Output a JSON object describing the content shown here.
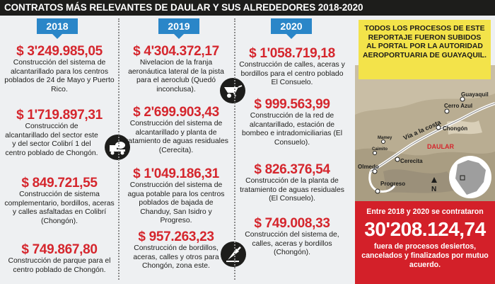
{
  "title": "CONTRATOS MÁS RELEVANTES DE DAULAR Y SUS ALREDEDORES 2018-2020",
  "columns": [
    {
      "year": "2018",
      "items": [
        {
          "amount": "$ 3'249.985,05",
          "desc": "Construcción del sistema de alcantarillado para los centros poblados de 24 de Mayo y Puerto Rico."
        },
        {
          "amount": "$ 1'719.897,31",
          "desc": "Construcción de alcantarillado del sector este y del sector Colibrí 1 del centro poblado de Chongón."
        },
        {
          "amount": "$ 849.721,55",
          "desc": "Construcción de sistema complementario, bordillos, aceras y calles asfaltadas en Colibrí (Chongón)."
        },
        {
          "amount": "$ 749.867,80",
          "desc": "Construcción de parque para el centro poblado de Chongón."
        }
      ]
    },
    {
      "year": "2019",
      "items": [
        {
          "amount": "$ 4'304.372,17",
          "desc": "Nivelacion de la franja aeronáutica lateral de la pista para el aeroclub (Quedó inconclusa)."
        },
        {
          "amount": "$ 2'699.903,43",
          "desc": "Construcción del sistema de alcantarillado y planta de tratamiento de aguas residuales (Cerecita)."
        },
        {
          "amount": "$ 1'049.186,31",
          "desc": "Construcción del sistema de agua potable para los centros poblados de bajada de Chanduy, San Isidro y Progreso."
        },
        {
          "amount": "$ 957.263,23",
          "desc": "Construcción de bordillos, aceras, calles y otros para Chongón, zona este."
        }
      ]
    },
    {
      "year": "2020",
      "items": [
        {
          "amount": "$ 1'058.719,18",
          "desc": "Construcción de calles, aceras y bordillos para el centro poblado El Consuelo."
        },
        {
          "amount": "$ 999.563,99",
          "desc": "Construcción de la red de alcantarillado, estación de bombeo e intradomiciliarias (El Consuelo)."
        },
        {
          "amount": "$ 826.376,54",
          "desc": "Construcción de la planta de tratamiento de aguas residuales (El Consuelo)."
        },
        {
          "amount": "$ 749.008,33",
          "desc": "Construcción del sistema de, calles, aceras y bordillos (Chongón)."
        }
      ]
    }
  ],
  "note": "TODOS LOS PROCESOS DE ESTE REPORTAJE FUERON SUBIDOS AL PORTAL POR LA AUTORIDAD AEROPORTUARIA DE GUAYAQUIL.",
  "map": {
    "labels": {
      "guayaquil": "Guayaquil",
      "cerro_azul": "Cerro Azul",
      "chongon": "Chongón",
      "via": "Vía a la costa",
      "daular": "DAULAR",
      "mamey": "Mamey",
      "caimito": "Caimito",
      "olmedo": "Olmedo",
      "cerecita": "Cerecita",
      "progreso": "Progreso",
      "north": "N"
    }
  },
  "summary": {
    "top": "Entre 2018 y 2020 se contrataron",
    "total": "30'208.124,74",
    "bottom": "fuera de procesos desiertos, cancelados y finalizados por mutuo acuerdo."
  },
  "colors": {
    "accent_red": "#d5262d",
    "year_blue": "#2a86c8",
    "note_yellow": "#f3e34a",
    "summary_red": "#d32029"
  }
}
